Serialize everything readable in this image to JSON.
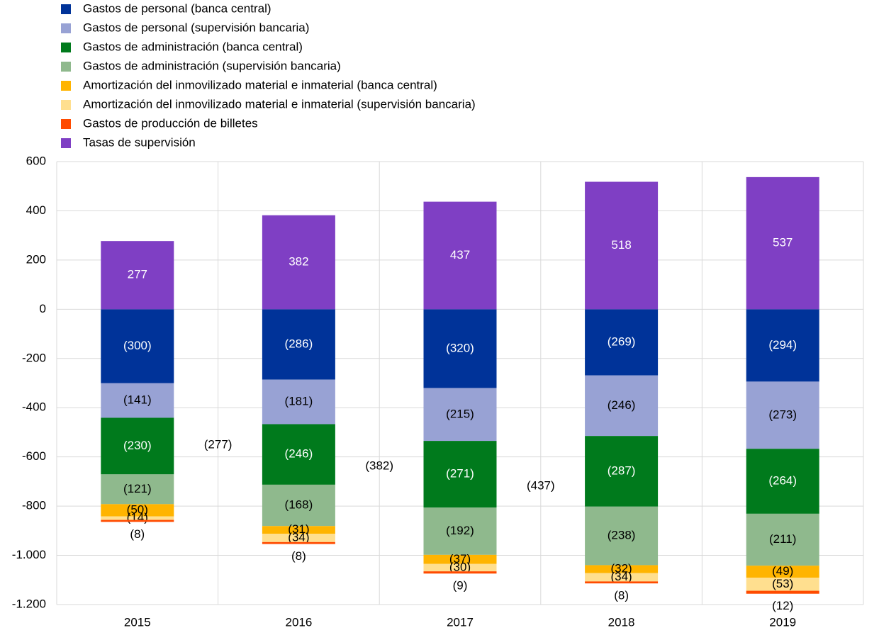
{
  "chart_data": {
    "type": "stacked-bar",
    "categories": [
      "2015",
      "2016",
      "2017",
      "2018",
      "2019"
    ],
    "series": [
      {
        "name": "Gastos de personal (banca central)",
        "color": "#003399",
        "values": [
          -300,
          -286,
          -320,
          -269,
          -294
        ],
        "value_labels": [
          "(300)",
          "(286)",
          "(320)",
          "(269)",
          "(294)"
        ]
      },
      {
        "name": "Gastos de personal (supervisión bancaria)",
        "color": "#98a2d4",
        "values": [
          -141,
          -181,
          -215,
          -246,
          -273
        ],
        "value_labels": [
          "(141)",
          "(181)",
          "(215)",
          "(246)",
          "(273)"
        ]
      },
      {
        "name": "Gastos de administración (banca central)",
        "color": "#007a1c",
        "values": [
          -230,
          -246,
          -271,
          -287,
          -264
        ],
        "value_labels": [
          "(230)",
          "(246)",
          "(271)",
          "(287)",
          "(264)"
        ]
      },
      {
        "name": "Gastos de administración (supervisión bancaria)",
        "color": "#8fb98d",
        "values": [
          -121,
          -168,
          -192,
          -238,
          -211
        ],
        "value_labels": [
          "(121)",
          "(168)",
          "(192)",
          "(238)",
          "(211)"
        ]
      },
      {
        "name": "Amortización del inmovilizado material e inmaterial (banca central)",
        "color": "#ffb400",
        "values": [
          -50,
          -31,
          -37,
          -32,
          -49
        ],
        "value_labels": [
          "(50)",
          "(31)",
          "(37)",
          "(32)",
          "(49)"
        ]
      },
      {
        "name": "Amortización del inmovilizado material e inmaterial (supervisión bancaria)",
        "color": "#ffdf8f",
        "values": [
          -14,
          -34,
          -30,
          -34,
          -53
        ],
        "value_labels": [
          "(14)",
          "(34)",
          "(30)",
          "(34)",
          "(53)"
        ]
      },
      {
        "name": "Gastos de producción de billetes",
        "color": "#ff4b00",
        "values": [
          -8,
          -8,
          -9,
          -8,
          -12
        ],
        "value_labels": [
          "(8)",
          "(8)",
          "(9)",
          "(8)",
          "(12)"
        ]
      },
      {
        "name": "Tasas de supervisión",
        "color": "#7f3fc4",
        "values": [
          277,
          382,
          437,
          518,
          537
        ]
      }
    ],
    "annotations": [
      "(277)",
      "(382)",
      "(437)"
    ],
    "ylim": [
      -1200,
      600
    ],
    "yticks": [
      {
        "value": -1200,
        "label": "-1.200"
      },
      {
        "value": -1000,
        "label": "-1.000"
      },
      -800,
      -600,
      -400,
      -200,
      0,
      200,
      400,
      600
    ],
    "grid": true
  }
}
